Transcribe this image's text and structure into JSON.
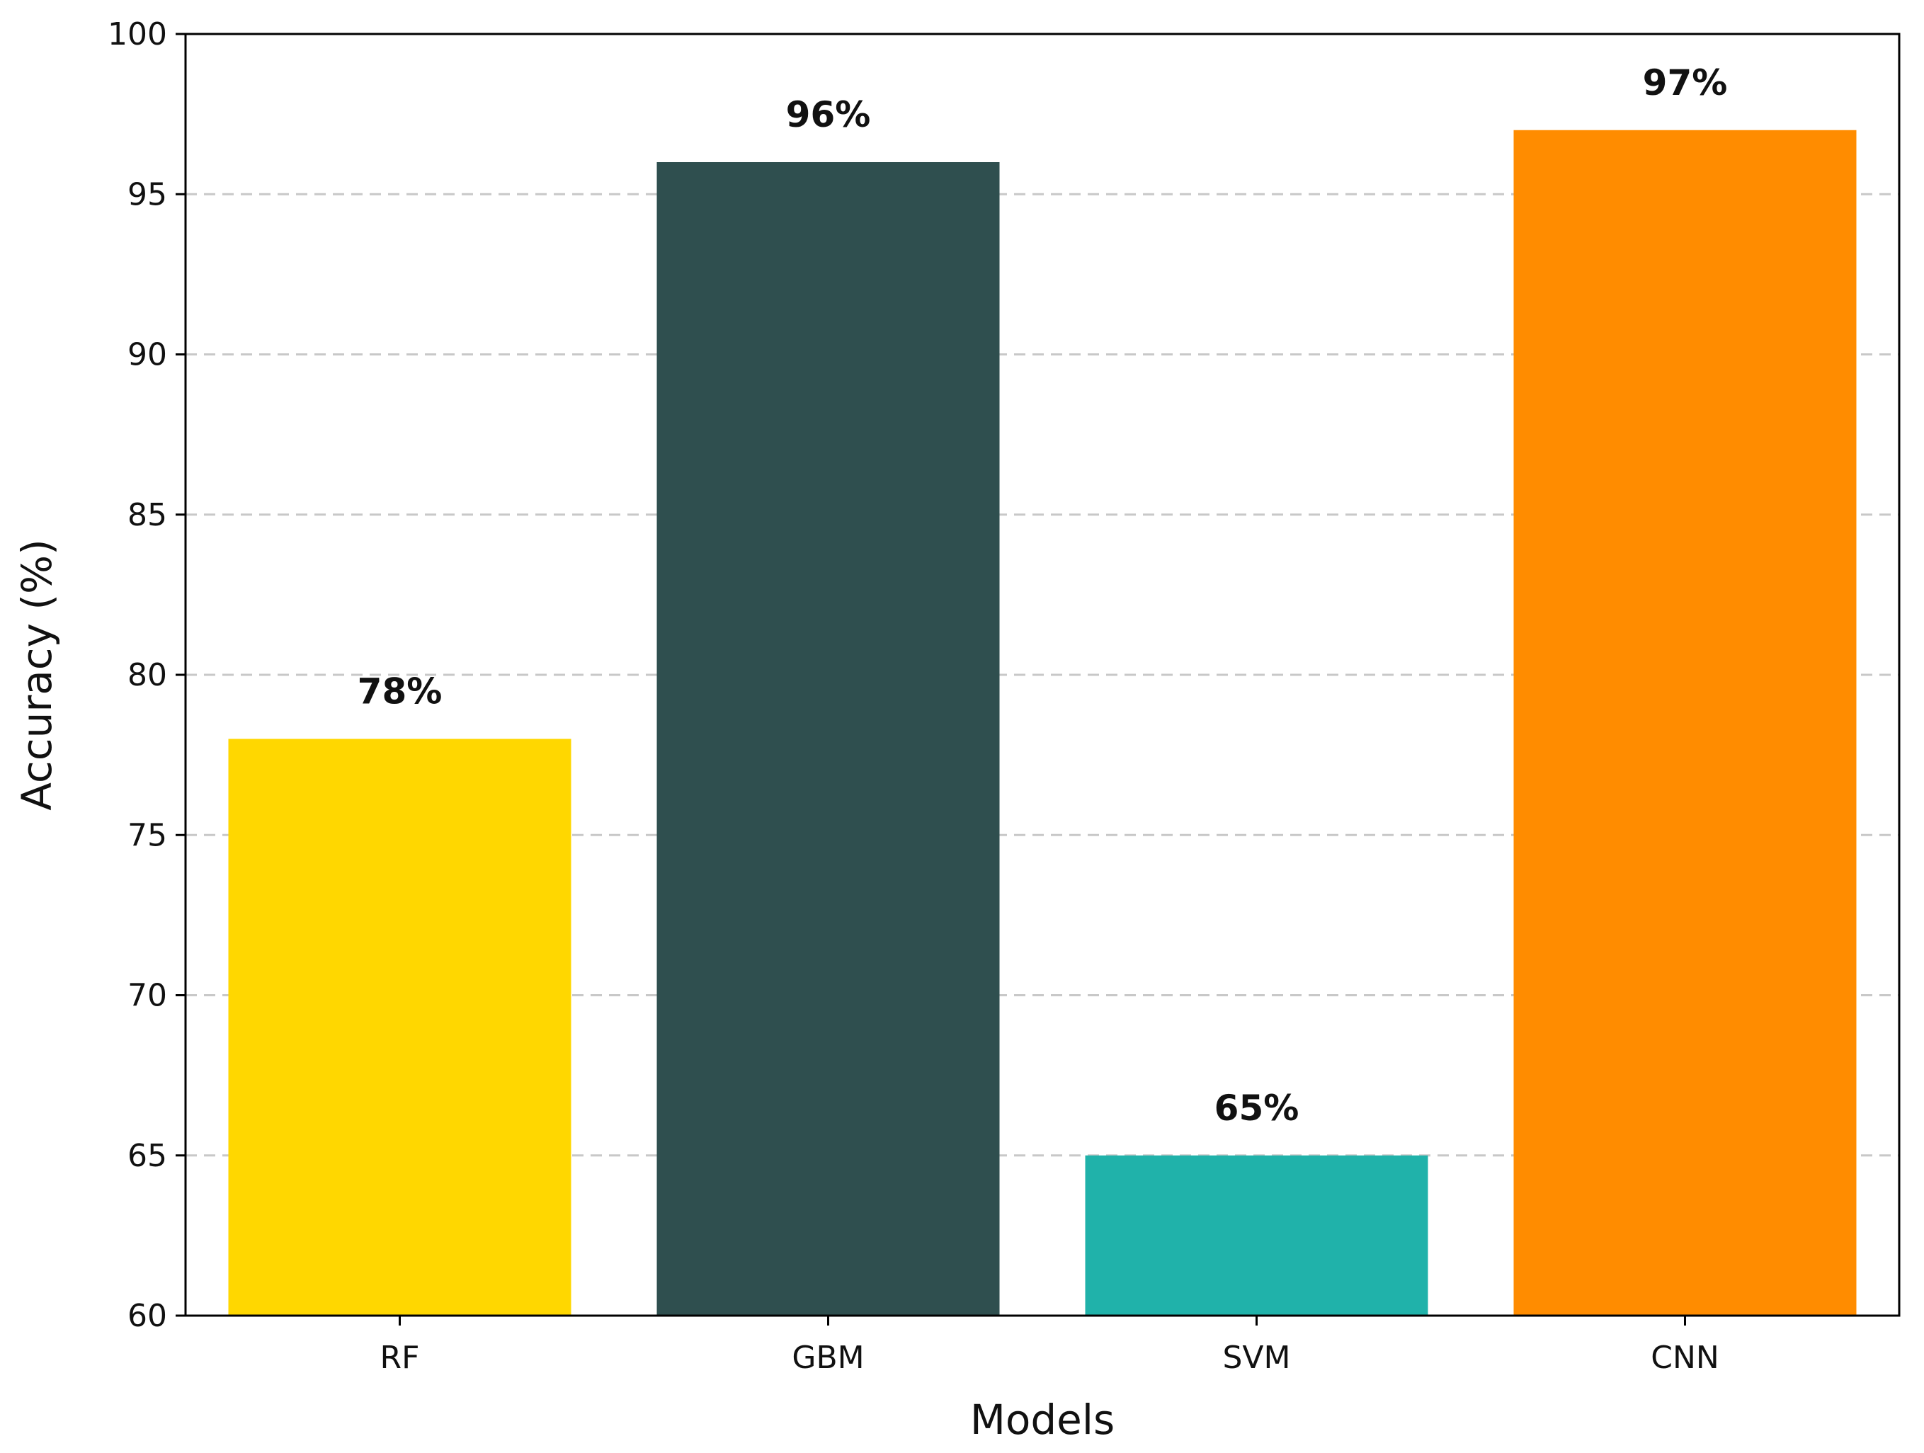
{
  "chart_data": {
    "type": "bar",
    "title": "",
    "xlabel": "Models",
    "ylabel": "Accuracy (%)",
    "categories": [
      "RF",
      "GBM",
      "SVM",
      "CNN"
    ],
    "values": [
      78,
      96,
      65,
      97
    ],
    "data_labels": [
      "78%",
      "96%",
      "65%",
      "97%"
    ],
    "colors": [
      "#FFD700",
      "#2F4F4F",
      "#20B2AA",
      "#FF8C00"
    ],
    "ylim": [
      60,
      100
    ],
    "yticks": [
      "60",
      "65",
      "70",
      "75",
      "80",
      "85",
      "90",
      "95",
      "100"
    ],
    "grid": {
      "axis": "y",
      "style": "dashed",
      "color": "#c8c8c8"
    },
    "legend": "none"
  }
}
